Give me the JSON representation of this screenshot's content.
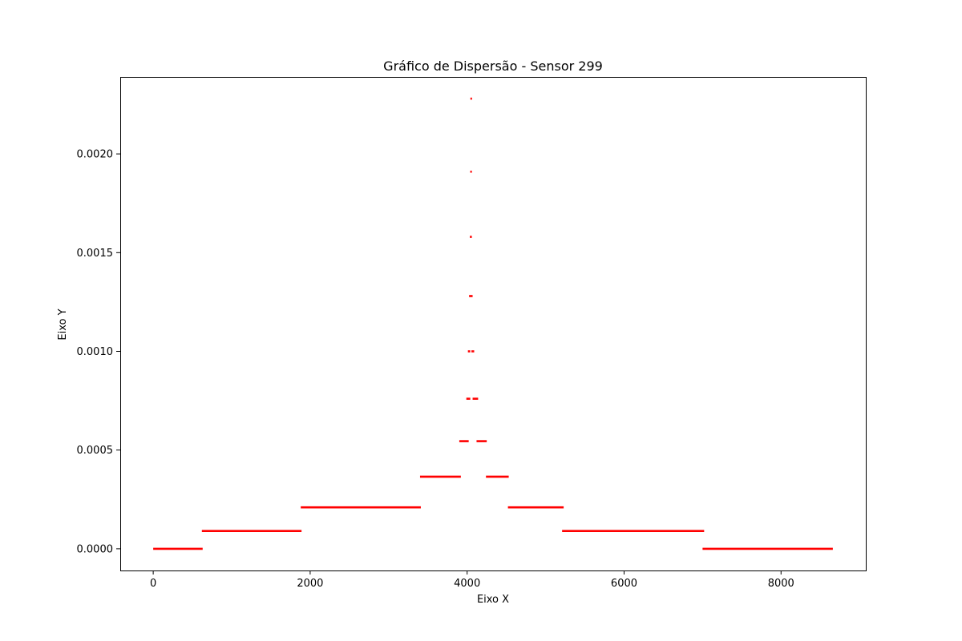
{
  "chart_data": {
    "type": "scatter",
    "title": "Gráfico de Dispersão - Sensor 299",
    "xlabel": "Eixo X",
    "ylabel": "Eixo Y",
    "xlim": [
      -420,
      9080
    ],
    "ylim": [
      -0.00011,
      0.00239
    ],
    "xticks": [
      0,
      2000,
      4000,
      6000,
      8000
    ],
    "xtick_labels": [
      "0",
      "2000",
      "4000",
      "6000",
      "8000"
    ],
    "yticks": [
      0,
      0.0005,
      0.001,
      0.0015,
      0.002
    ],
    "ytick_labels": [
      "0.0000",
      "0.0005",
      "0.0010",
      "0.0015",
      "0.0020"
    ],
    "grid": false,
    "series": [
      {
        "color": "#ff0000",
        "marker": "point",
        "segments": [
          {
            "x_start": 0,
            "x_end": 630,
            "y": 0.0
          },
          {
            "x_start": 620,
            "x_end": 1890,
            "y": 9e-05
          },
          {
            "x_start": 1880,
            "x_end": 3410,
            "y": 0.00021
          },
          {
            "x_start": 3400,
            "x_end": 3920,
            "y": 0.000365
          },
          {
            "x_start": 3900,
            "x_end": 4020,
            "y": 0.000545
          },
          {
            "x_start": 3990,
            "x_end": 4040,
            "y": 0.00076
          },
          {
            "x_start": 4010,
            "x_end": 4040,
            "y": 0.001
          },
          {
            "x_start": 4025,
            "x_end": 4070,
            "y": 0.00128
          },
          {
            "x_start": 4035,
            "x_end": 4060,
            "y": 0.00158
          },
          {
            "x_start": 4040,
            "x_end": 4060,
            "y": 0.00191
          },
          {
            "x_start": 4048,
            "x_end": 4056,
            "y": 0.00228
          },
          {
            "x_start": 4055,
            "x_end": 4090,
            "y": 0.001
          },
          {
            "x_start": 4070,
            "x_end": 4140,
            "y": 0.00076
          },
          {
            "x_start": 4120,
            "x_end": 4250,
            "y": 0.000545
          },
          {
            "x_start": 4240,
            "x_end": 4530,
            "y": 0.000365
          },
          {
            "x_start": 4520,
            "x_end": 5230,
            "y": 0.00021
          },
          {
            "x_start": 5210,
            "x_end": 7020,
            "y": 9e-05
          },
          {
            "x_start": 7000,
            "x_end": 8660,
            "y": 0.0
          }
        ]
      }
    ]
  }
}
